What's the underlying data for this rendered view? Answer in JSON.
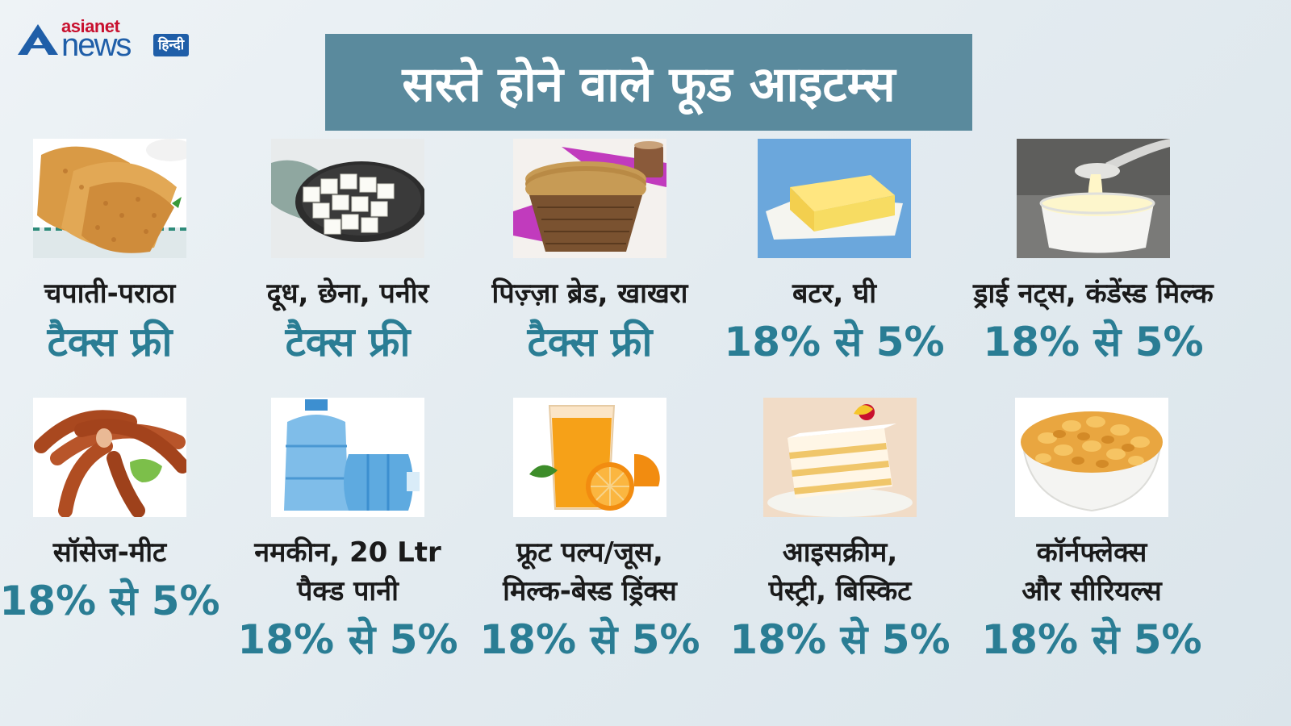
{
  "brand": {
    "asianet": "asianet",
    "news": "news",
    "hindi": "हिन्दी"
  },
  "title": "सस्ते होने वाले फूड आइटम्स",
  "items": [
    {
      "name": "चपाती-पराठा",
      "rate": "टैक्स फ्री"
    },
    {
      "name": "दूध, छेना, पनीर",
      "rate": "टैक्स फ्री"
    },
    {
      "name": "पिज़्ज़ा ब्रेड, खाखरा",
      "rate": "टैक्स फ्री"
    },
    {
      "name": "बटर, घी",
      "rate": "18% से 5%"
    },
    {
      "name": "ड्राई नट्स, कंडेंस्ड मिल्क",
      "rate": "18% से 5%"
    },
    {
      "name": "सॉसेज-मीट",
      "rate": "18% से 5%"
    },
    {
      "name_line1": "नमकीन, 20 Ltr",
      "name_line2": "पैक्ड पानी",
      "rate": "18% से 5%"
    },
    {
      "name_line1": "फ्रूट पल्प/जूस,",
      "name_line2": "मिल्क-बेस्ड ड्रिंक्स",
      "rate": "18% से 5%"
    },
    {
      "name_line1": "आइसक्रीम,",
      "name_line2": "पेस्ट्री, बिस्किट",
      "rate": "18% से 5%"
    },
    {
      "name_line1": "कॉर्नफ्लेक्स",
      "name_line2": "और सीरियल्स",
      "rate": "18% से 5%"
    }
  ]
}
